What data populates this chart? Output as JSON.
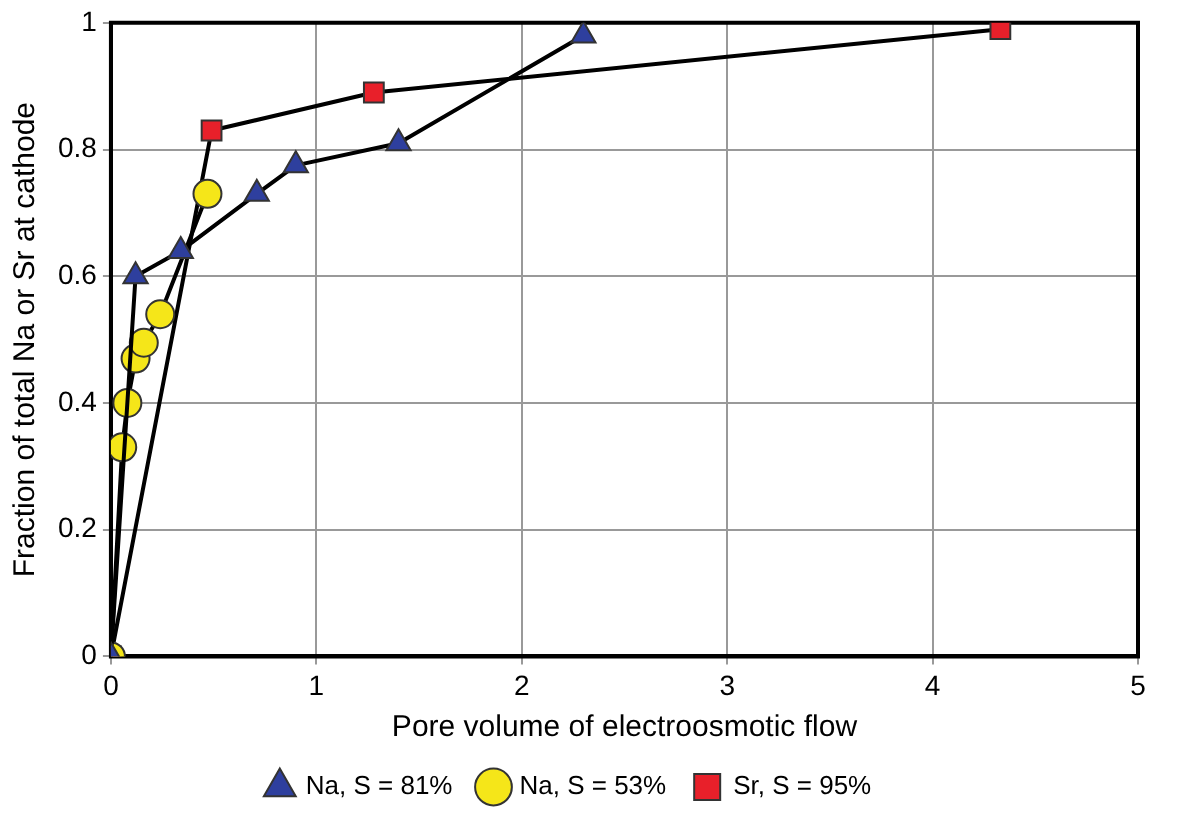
{
  "chart_data": {
    "type": "line",
    "xlabel": "Pore volume of electroosmotic flow",
    "ylabel": "Fraction of total Na or Sr at cathode",
    "xlim": [
      0,
      5
    ],
    "xticks": [
      0,
      1,
      2,
      3,
      4,
      5
    ],
    "ylim": [
      0,
      1
    ],
    "yticks": [
      0,
      0.2,
      0.4,
      0.6,
      0.8,
      1
    ],
    "grid": true,
    "legend": "bottom",
    "line_style": "solid",
    "series": [
      {
        "name": "Na, S = 81%",
        "color": "#2e3f9e",
        "marker": "triangle",
        "x": [
          0,
          0.12,
          0.34,
          0.71,
          0.9,
          1.4,
          2.3
        ],
        "values": [
          0,
          0.6,
          0.64,
          0.73,
          0.775,
          0.81,
          0.98
        ]
      },
      {
        "name": "Na, S = 53%",
        "color": "#f5e619",
        "marker": "circle",
        "x": [
          0,
          0.055,
          0.08,
          0.12,
          0.16,
          0.24,
          0.47
        ],
        "values": [
          0,
          0.33,
          0.4,
          0.47,
          0.495,
          0.54,
          0.73
        ]
      },
      {
        "name": "Sr, S = 95%",
        "color": "#e8202a",
        "marker": "square",
        "x": [
          0,
          0.49,
          1.28,
          4.33
        ],
        "values": [
          0,
          0.83,
          0.89,
          0.99
        ]
      }
    ]
  }
}
